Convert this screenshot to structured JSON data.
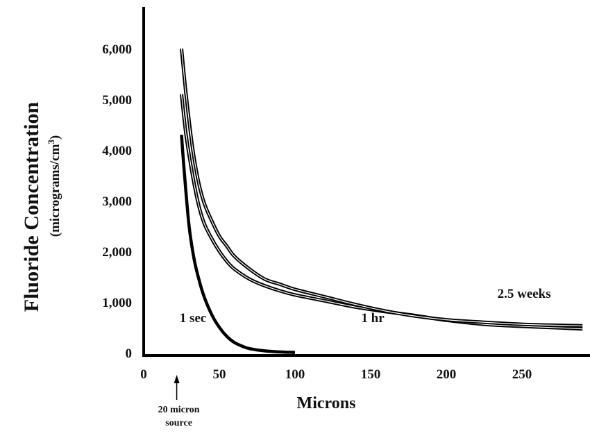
{
  "chart_data": {
    "type": "line",
    "xlabel": "Microns",
    "ylabel": "Fluoride Concentration",
    "ylabel_unit": "(micrograms/cm",
    "ylabel_unit_sup": "3",
    "ylabel_unit_close": ")",
    "xlim": [
      0,
      290
    ],
    "ylim": [
      0,
      6500
    ],
    "x_ticks": [
      0,
      50,
      100,
      150,
      200,
      250
    ],
    "x_tick_labels": [
      "0",
      "50",
      "100",
      "150",
      "200",
      "250"
    ],
    "y_ticks": [
      0,
      1000,
      2000,
      3000,
      4000,
      5000,
      6000
    ],
    "y_tick_labels": [
      "0",
      "1,000",
      "2,000",
      "3,000",
      "4,000",
      "5,000",
      "6,000"
    ],
    "grid": false,
    "legend": "none",
    "annotation": {
      "lines": [
        "20 micron",
        "source"
      ],
      "x": 20
    },
    "series": [
      {
        "name": "1 sec",
        "x": [
          25,
          27,
          30,
          33,
          36,
          40,
          45,
          50,
          55,
          60,
          65,
          70,
          80,
          90,
          100
        ],
        "y": [
          4300,
          3500,
          2500,
          1900,
          1500,
          1100,
          750,
          500,
          320,
          200,
          130,
          80,
          35,
          15,
          5
        ]
      },
      {
        "name": "1 hr",
        "x": [
          25,
          28,
          32,
          36,
          40,
          45,
          50,
          55,
          60,
          70,
          80,
          90,
          100,
          120,
          140,
          160,
          180,
          200,
          225,
          250,
          275,
          290
        ],
        "y": [
          5100,
          4300,
          3550,
          2950,
          2550,
          2250,
          2000,
          1800,
          1650,
          1450,
          1320,
          1220,
          1140,
          1020,
          900,
          810,
          730,
          640,
          560,
          520,
          490,
          470
        ]
      },
      {
        "name": "2.5 weeks",
        "x": [
          25,
          28,
          32,
          36,
          40,
          45,
          50,
          55,
          60,
          70,
          80,
          90,
          100,
          120,
          140,
          160,
          180,
          200,
          225,
          250,
          275,
          290
        ],
        "y": [
          6000,
          5100,
          4100,
          3400,
          2950,
          2600,
          2300,
          2100,
          1900,
          1650,
          1450,
          1350,
          1250,
          1100,
          950,
          820,
          720,
          650,
          600,
          560,
          540,
          530
        ]
      }
    ],
    "series_label_pos": [
      {
        "x": 10,
        "y": 700
      },
      {
        "x": 130,
        "y": 700
      },
      {
        "x": 220,
        "y": 1180
      }
    ]
  }
}
